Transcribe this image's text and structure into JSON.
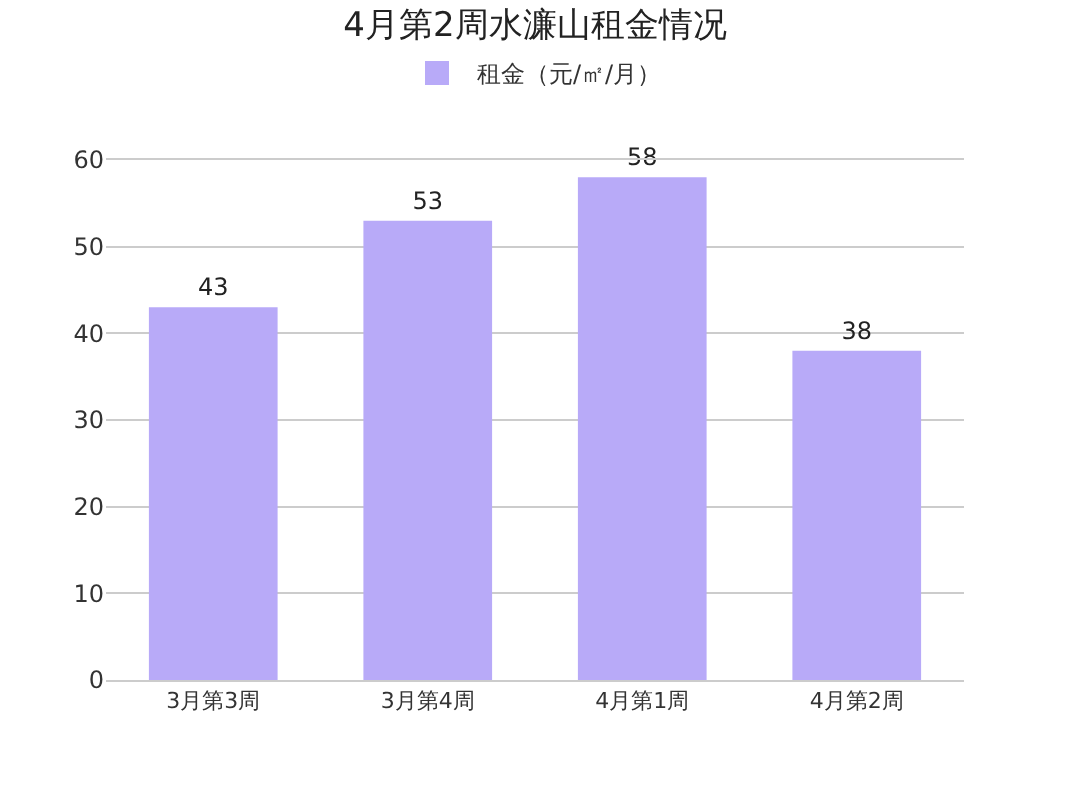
{
  "chart_data": {
    "type": "bar",
    "title": "4月第2周水濂山租金情况",
    "categories": [
      "3月第3周",
      "3月第4周",
      "4月第1周",
      "4月第2周"
    ],
    "series": [
      {
        "name": "租金（元/㎡/月）",
        "color": "#b8aaf8",
        "values": [
          43,
          53,
          58,
          38
        ]
      }
    ],
    "ylim": [
      0,
      60
    ],
    "yticks": [
      0,
      10,
      20,
      30,
      40,
      50,
      60
    ],
    "grid": "y",
    "legend": "top",
    "data_labels": true
  }
}
